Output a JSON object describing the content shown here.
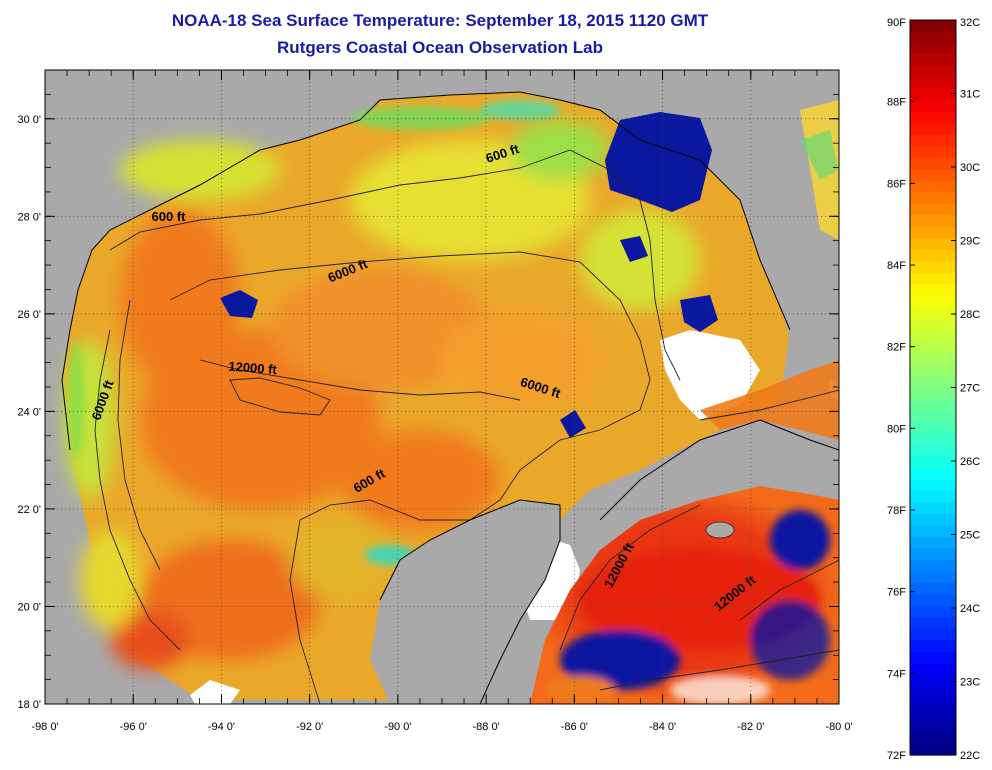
{
  "header": {
    "title": "NOAA-18 Sea Surface Temperature:  September 18, 2015 1120 GMT",
    "subtitle": "Rutgers Coastal Ocean Observation Lab"
  },
  "map": {
    "lon_range": [
      -98,
      -80
    ],
    "lat_range": [
      18,
      31
    ],
    "lon_ticks": [
      {
        "value": -98,
        "label": "-98 0'"
      },
      {
        "value": -96,
        "label": "-96 0'"
      },
      {
        "value": -94,
        "label": "-94 0'"
      },
      {
        "value": -92,
        "label": "-92 0'"
      },
      {
        "value": -90,
        "label": "-90 0'"
      },
      {
        "value": -88,
        "label": "-88 0'"
      },
      {
        "value": -86,
        "label": "-86 0'"
      },
      {
        "value": -84,
        "label": "-84 0'"
      },
      {
        "value": -82,
        "label": "-82 0'"
      },
      {
        "value": -80,
        "label": "-80 0'"
      }
    ],
    "lat_ticks": [
      {
        "value": 18,
        "label": "18 0'"
      },
      {
        "value": 20,
        "label": "20 0'"
      },
      {
        "value": 22,
        "label": "22 0'"
      },
      {
        "value": 24,
        "label": "24 0'"
      },
      {
        "value": 26,
        "label": "26 0'"
      },
      {
        "value": 28,
        "label": "28 0'"
      },
      {
        "value": 30,
        "label": "30 0'"
      }
    ],
    "contour_labels": [
      {
        "text": "600 ft",
        "lon": -95.2,
        "lat": 27.9,
        "angle": 0
      },
      {
        "text": "600 ft",
        "lon": -87.6,
        "lat": 29.2,
        "angle": -18
      },
      {
        "text": "6000 ft",
        "lon": -91.1,
        "lat": 26.8,
        "angle": -22
      },
      {
        "text": "12000 ft",
        "lon": -93.3,
        "lat": 24.8,
        "angle": 4
      },
      {
        "text": "6000 ft",
        "lon": -96.6,
        "lat": 24.2,
        "angle": -70
      },
      {
        "text": "6000 ft",
        "lon": -86.8,
        "lat": 24.4,
        "angle": 18
      },
      {
        "text": "600 ft",
        "lon": -90.6,
        "lat": 22.5,
        "angle": -30
      },
      {
        "text": "12000 ft",
        "lon": -84.9,
        "lat": 20.8,
        "angle": -62
      },
      {
        "text": "12000 ft",
        "lon": -82.3,
        "lat": 20.2,
        "angle": -38
      }
    ],
    "colors": {
      "land": "#a9a9a9",
      "no_data": "#ffffff",
      "warm": "#f07a1a",
      "hot": "#e62a14",
      "yellow": "#e8e62e",
      "green": "#8cdc46",
      "cyan": "#3ad8c0",
      "cold": "#0a18a0"
    }
  },
  "colorbar": {
    "fahrenheit": [
      "90F",
      "88F",
      "86F",
      "84F",
      "82F",
      "80F",
      "78F",
      "76F",
      "74F",
      "72F"
    ],
    "celsius": [
      "32C",
      "31C",
      "30C",
      "29C",
      "28C",
      "27C",
      "26C",
      "25C",
      "24C",
      "23C",
      "22C"
    ],
    "f_range": [
      72,
      90
    ],
    "c_range": [
      22,
      32
    ]
  }
}
